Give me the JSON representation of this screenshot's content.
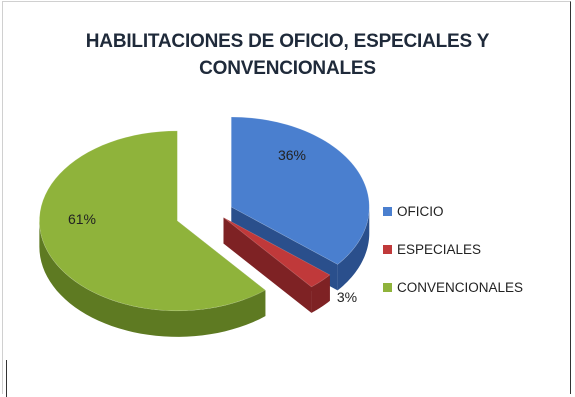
{
  "chart_data": {
    "type": "pie",
    "title_lines": [
      "HABILITACIONES DE OFICIO, ESPECIALES Y",
      "CONVENCIONALES"
    ],
    "categories": [
      "OFICIO",
      "ESPECIALES",
      "CONVENCIONALES"
    ],
    "values": [
      36,
      3,
      61
    ],
    "data_labels": [
      "36%",
      "3%",
      "61%"
    ],
    "colors": [
      "#4a7fcf",
      "#c0393a",
      "#8fb33b"
    ],
    "side_colors": [
      "#2a4f8c",
      "#7e2224",
      "#5e7a22"
    ],
    "legend_position": "right",
    "style": "3d-exploded"
  }
}
